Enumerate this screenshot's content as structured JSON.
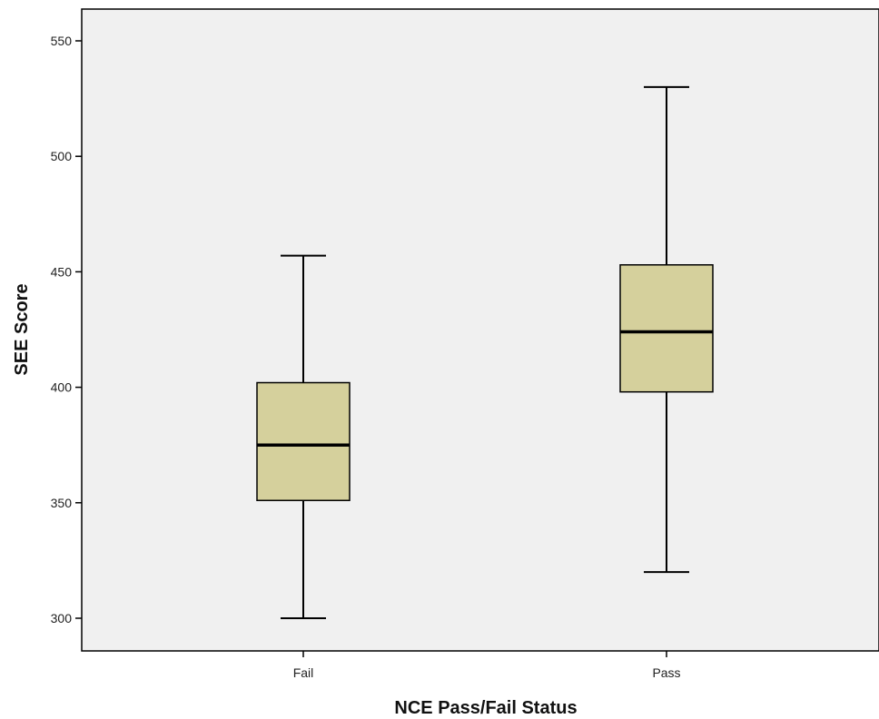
{
  "chart_data": {
    "type": "boxplot",
    "title": "",
    "xlabel": "NCE Pass/Fail Status",
    "ylabel": "SEE Score",
    "ylim": [
      286,
      564
    ],
    "yticks": [
      300,
      350,
      400,
      450,
      500,
      550
    ],
    "categories": [
      "Fail",
      "Pass"
    ],
    "boxes": [
      {
        "category": "Fail",
        "min": 300,
        "q1": 351,
        "median": 375,
        "q3": 402,
        "max": 457
      },
      {
        "category": "Pass",
        "min": 320,
        "q1": 398,
        "median": 424,
        "q3": 453,
        "max": 530
      }
    ],
    "grid": false,
    "legend": "none",
    "colors": {
      "plot_background": "#f0f0f0",
      "box_fill": "#d5d09c",
      "stroke": "#000000"
    }
  }
}
